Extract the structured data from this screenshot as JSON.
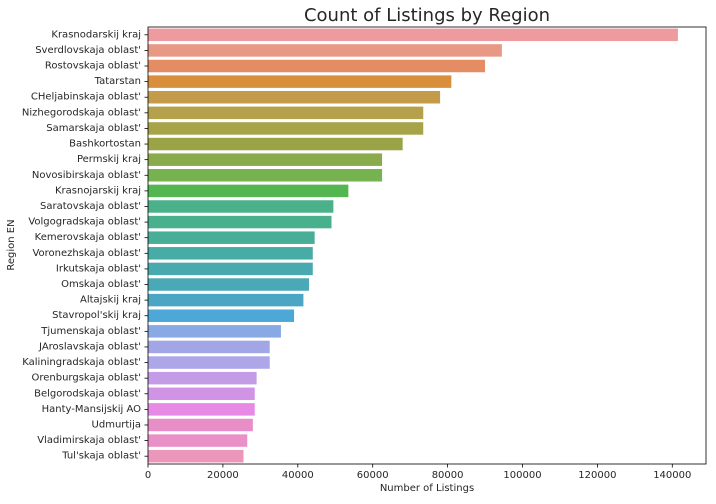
{
  "chart_data": {
    "type": "bar",
    "orientation": "horizontal",
    "title": "Count of Listings by Region",
    "xlabel": "Number of Listings",
    "ylabel": "Region EN",
    "xlim": [
      0,
      149000
    ],
    "xticks": [
      0,
      20000,
      40000,
      60000,
      80000,
      100000,
      120000,
      140000
    ],
    "grid": false,
    "categories": [
      "Krasnodarskij kraj",
      "Sverdlovskaja oblast'",
      "Rostovskaja oblast'",
      "Tatarstan",
      "CHeljabinskaja oblast'",
      "Nizhegorodskaja oblast'",
      "Samarskaja oblast'",
      "Bashkortostan",
      "Permskij kraj",
      "Novosibirskaja oblast'",
      "Krasnojarskij kraj",
      "Saratovskaja oblast'",
      "Volgogradskaja oblast'",
      "Kemerovskaja oblast'",
      "Voronezhskaja oblast'",
      "Irkutskaja oblast'",
      "Omskaja oblast'",
      "Altajskij kraj",
      "Stavropol'skij kraj",
      "Tjumenskaja oblast'",
      "JAroslavskaja oblast'",
      "Kaliningradskaja oblast'",
      "Orenburgskaja oblast'",
      "Belgorodskaja oblast'",
      "Hanty-Mansijskij AO",
      "Udmurtija",
      "Vladimirskaja oblast'",
      "Tul'skaja oblast'"
    ],
    "values": [
      141500,
      94500,
      90000,
      81000,
      78000,
      73500,
      73500,
      68000,
      62500,
      62500,
      53500,
      49500,
      49000,
      44500,
      44000,
      44000,
      43000,
      41500,
      39000,
      35500,
      32500,
      32500,
      29000,
      28500,
      28500,
      28000,
      26500,
      25500
    ],
    "colors": [
      "#ee9b9f",
      "#e89986",
      "#e48c63",
      "#d98e3b",
      "#c49b4a",
      "#b5a04c",
      "#a7a348",
      "#9ba347",
      "#8aab4c",
      "#76b24f",
      "#53b650",
      "#4ab18a",
      "#48b08d",
      "#48ae97",
      "#47aca6",
      "#48aaae",
      "#4aa8b7",
      "#4ba6c3",
      "#4da8d8",
      "#89a9e4",
      "#a3a6e6",
      "#ada6e8",
      "#c39be7",
      "#d193e6",
      "#e68ae5",
      "#e78ec6",
      "#e991c7",
      "#eb96bb"
    ]
  }
}
